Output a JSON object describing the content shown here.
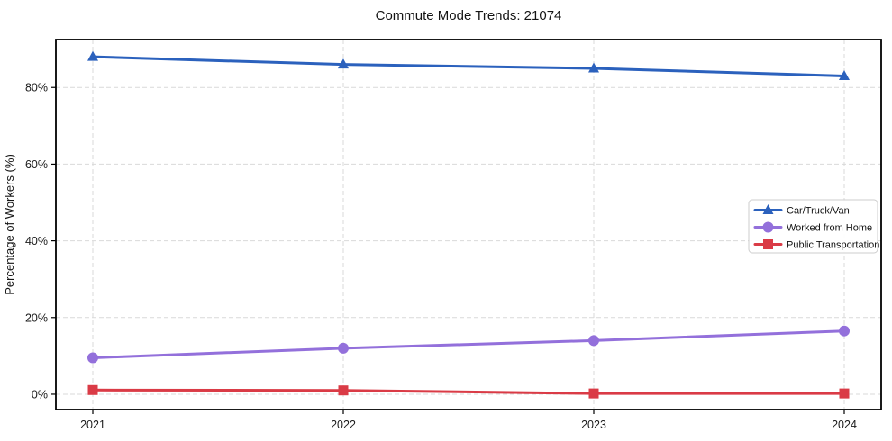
{
  "title": "Commute Mode Trends: 21074",
  "chart_data": {
    "type": "line",
    "title": "Commute Mode Trends: 21074",
    "xlabel": "",
    "ylabel": "Percentage of Workers (%)",
    "x": [
      2021,
      2022,
      2023,
      2024
    ],
    "xtick_labels": [
      "2021",
      "2022",
      "2023",
      "2024"
    ],
    "yticks": [
      0,
      20,
      40,
      60,
      80
    ],
    "ytick_labels": [
      "0%",
      "20%",
      "40%",
      "60%",
      "80%"
    ],
    "ylim": [
      -4,
      92.5
    ],
    "grid": true,
    "grid_style": "dashed",
    "legend_position": "center right",
    "series": [
      {
        "name": "Car/Truck/Van",
        "marker": "triangle",
        "color": "#2b61bd",
        "values": [
          88,
          86,
          85,
          83
        ]
      },
      {
        "name": "Worked from Home",
        "marker": "circle",
        "color": "#9370db",
        "values": [
          9.5,
          12,
          14,
          16.5
        ]
      },
      {
        "name": "Public Transportation",
        "marker": "square",
        "color": "#da3b46",
        "values": [
          1.1,
          1.0,
          0.2,
          0.2
        ]
      }
    ]
  },
  "colors": {
    "background": "#ffffff",
    "grid": "#d9d9d9",
    "spine": "#000000",
    "legend_border": "#cccccc"
  }
}
